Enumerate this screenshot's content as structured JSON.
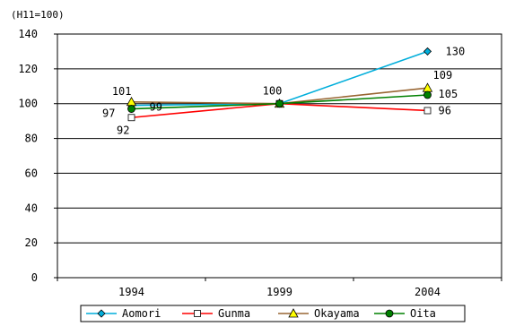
{
  "chart_data": {
    "type": "line",
    "unit_label": "(H11=100)",
    "categories": [
      "1994",
      "1999",
      "2004"
    ],
    "ylim": [
      0,
      140
    ],
    "ytick_step": 20,
    "grid": true,
    "legend_position": "bottom",
    "series": [
      {
        "name": "Aomori",
        "values": [
          99,
          100,
          130
        ],
        "color": "#00aedb",
        "marker": "diamond",
        "labels": [
          "99",
          "",
          "130"
        ]
      },
      {
        "name": "Gunma",
        "values": [
          92,
          100,
          96
        ],
        "color": "#ff0000",
        "marker": "square",
        "labels": [
          "92",
          "",
          "96"
        ]
      },
      {
        "name": "Okayama",
        "values": [
          101,
          100,
          109
        ],
        "color": "#996633",
        "marker": "triangle",
        "labels": [
          "101",
          "100",
          "109"
        ]
      },
      {
        "name": "Oita",
        "values": [
          97,
          100,
          105
        ],
        "color": "#008000",
        "marker": "circle",
        "labels": [
          "97",
          "",
          "105"
        ]
      }
    ]
  }
}
